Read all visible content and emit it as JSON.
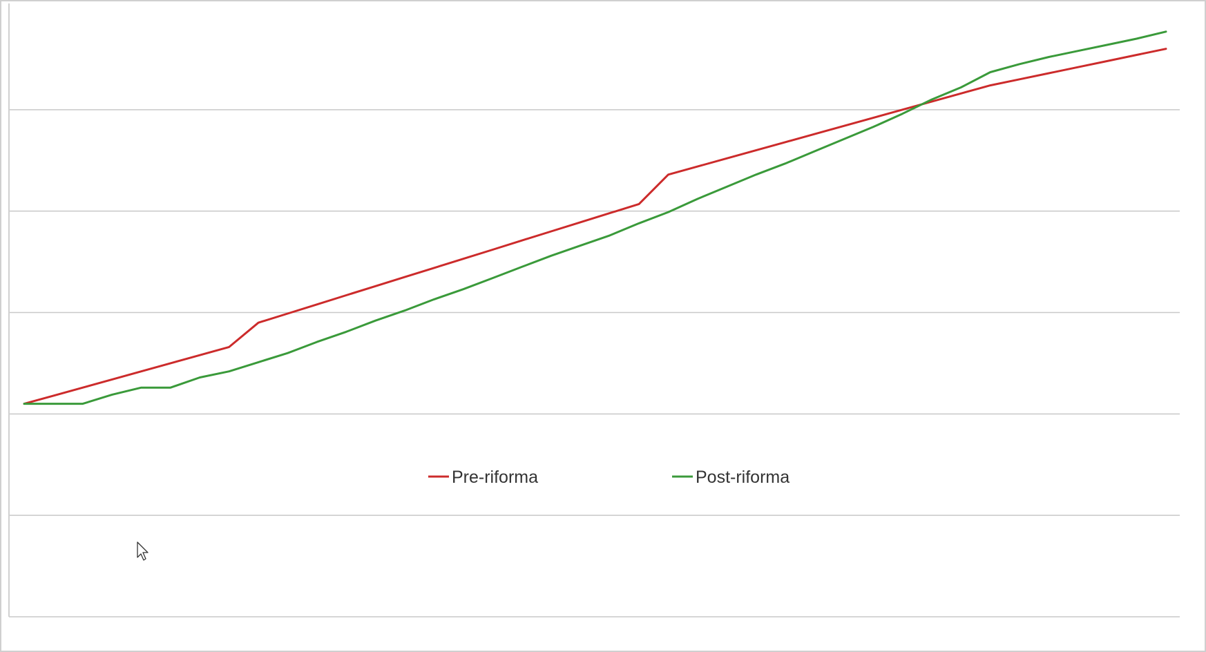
{
  "chart_data": {
    "type": "line",
    "title": "",
    "xlabel": "",
    "ylabel": "",
    "x": [
      1,
      2,
      3,
      4,
      5,
      6,
      7,
      8,
      9,
      10,
      11,
      12,
      13,
      14,
      15,
      16,
      17,
      18,
      19,
      20,
      21,
      22,
      23,
      24,
      25,
      26,
      27,
      28,
      29,
      30,
      31,
      32,
      33,
      34,
      35,
      36,
      37,
      38,
      39,
      40
    ],
    "xlim": [
      0.5,
      40.5
    ],
    "ylim": [
      0,
      6
    ],
    "gridlines": [
      0,
      1,
      2,
      3,
      4,
      5,
      6
    ],
    "grid": true,
    "legend_position": "center",
    "series": [
      {
        "name": "Pre-riforma",
        "color": "#cc2b2b",
        "values": [
          2.1,
          2.18,
          2.26,
          2.34,
          2.42,
          2.5,
          2.58,
          2.66,
          2.9,
          2.99,
          3.08,
          3.17,
          3.26,
          3.35,
          3.44,
          3.53,
          3.62,
          3.71,
          3.8,
          3.89,
          3.98,
          4.07,
          4.36,
          4.44,
          4.52,
          4.6,
          4.68,
          4.76,
          4.84,
          4.92,
          5.0,
          5.08,
          5.16,
          5.24,
          5.3,
          5.36,
          5.42,
          5.48,
          5.54,
          5.6
        ]
      },
      {
        "name": "Post-riforma",
        "color": "#3a9a3a",
        "values": [
          2.1,
          2.1,
          2.1,
          2.19,
          2.26,
          2.26,
          2.36,
          2.42,
          2.51,
          2.6,
          2.71,
          2.81,
          2.92,
          3.02,
          3.13,
          3.23,
          3.34,
          3.45,
          3.56,
          3.66,
          3.76,
          3.88,
          3.99,
          4.12,
          4.24,
          4.36,
          4.47,
          4.59,
          4.71,
          4.83,
          4.96,
          5.1,
          5.22,
          5.37,
          5.45,
          5.52,
          5.58,
          5.64,
          5.7,
          5.77
        ]
      }
    ]
  }
}
